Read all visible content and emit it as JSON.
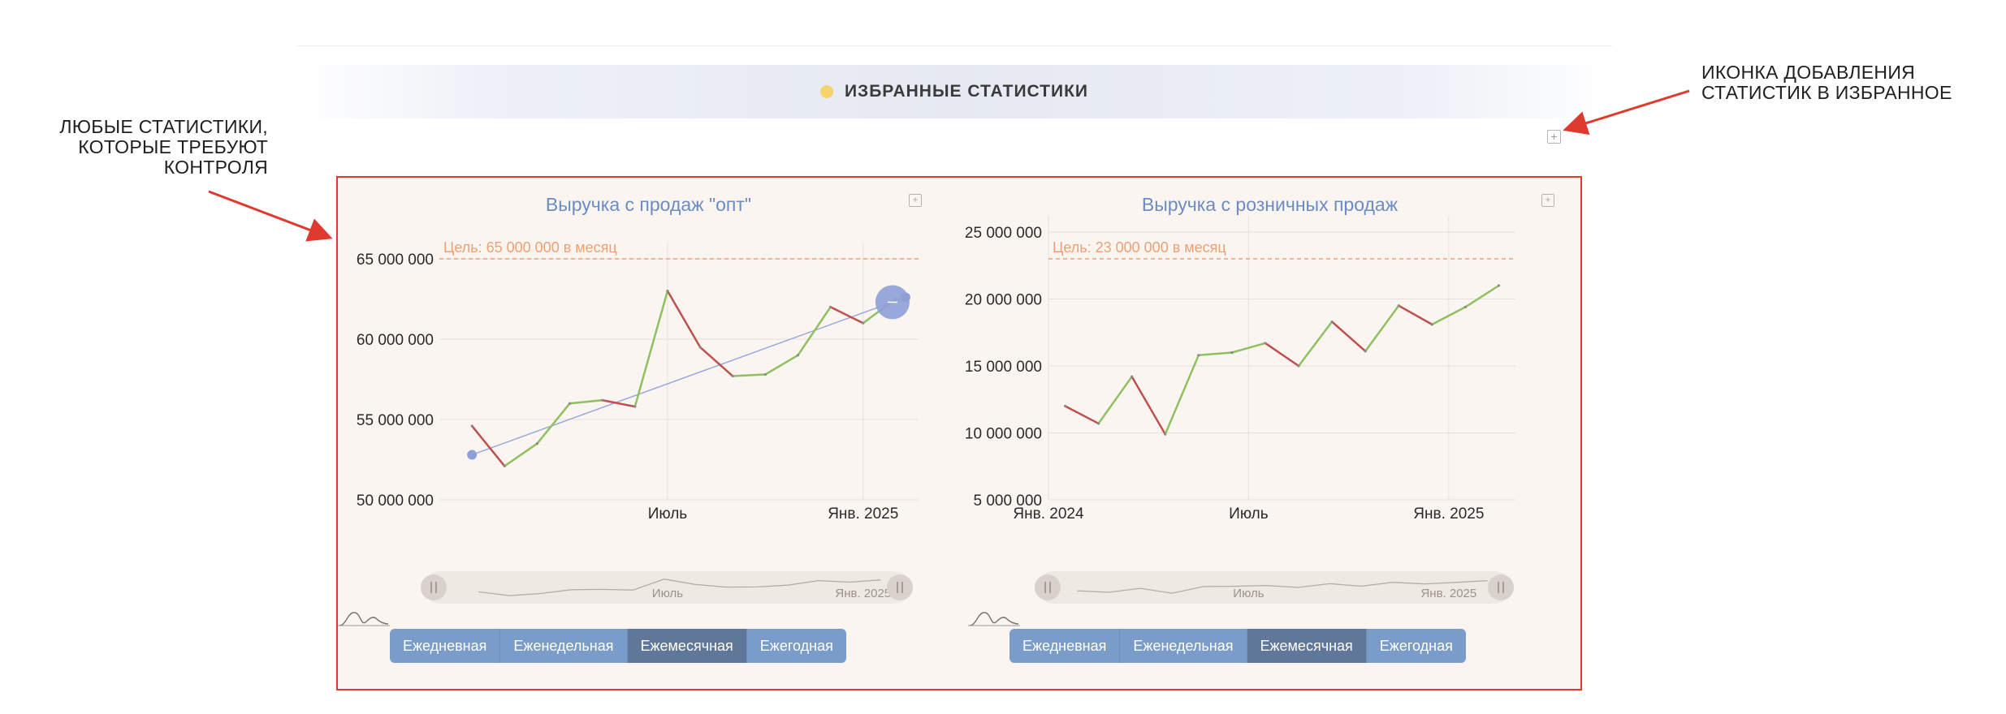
{
  "favorites": {
    "title": "ИЗБРАННЫЕ СТАТИСТИКИ",
    "dot_color": "#f6d36b"
  },
  "annotations": {
    "left_note": [
      "ЛЮБЫЕ СТАТИСТИКИ,",
      "КОТОРЫЕ ТРЕБУЮТ",
      "КОНТРОЛЯ"
    ],
    "right_note": [
      "ИКОНКА ДОБАВЛЕНИЯ",
      "СТАТИСТИК В ИЗБРАННОЕ"
    ],
    "arrow_color": "#e03a2e"
  },
  "period_buttons": [
    "Ежедневная",
    "Еженедельная",
    "Ежемесячная",
    "Ежегодная"
  ],
  "active_period": "Ежемесячная",
  "colors": {
    "up": "#8fc060",
    "down": "#c0504d",
    "goal": "#f0a070",
    "trend": "#9aa8e0",
    "title": "#6b8cc0"
  },
  "chart_data": [
    {
      "type": "line",
      "title": "Выручка с продаж \"опт\"",
      "goal": {
        "value": 65000000,
        "label": "Цель: 65 000 000 в месяц"
      },
      "y_ticks": [
        "65 000 000",
        "60 000 000",
        "55 000 000",
        "50 000 000"
      ],
      "y_tick_values": [
        65000000,
        60000000,
        55000000,
        50000000
      ],
      "ylim": [
        50000000,
        65000000
      ],
      "x_ticks": [
        "Июль",
        "Янв. 2025"
      ],
      "x_tick_months": [
        6,
        12
      ],
      "xlim": [
        -1,
        13.7
      ],
      "navigator_ticks": [
        "Июль",
        "Янв. 2025"
      ],
      "points": [
        {
          "m": 0,
          "v": 54600000
        },
        {
          "m": 1,
          "v": 52100000
        },
        {
          "m": 2,
          "v": 53500000
        },
        {
          "m": 3,
          "v": 56000000
        },
        {
          "m": 4,
          "v": 56200000
        },
        {
          "m": 5,
          "v": 55800000
        },
        {
          "m": 6,
          "v": 63000000
        },
        {
          "m": 7,
          "v": 59500000
        },
        {
          "m": 8,
          "v": 57700000
        },
        {
          "m": 9,
          "v": 57800000
        },
        {
          "m": 10,
          "v": 59000000
        },
        {
          "m": 11,
          "v": 62000000
        },
        {
          "m": 12,
          "v": 61000000
        },
        {
          "m": 13,
          "v": 62500000
        }
      ],
      "trend": {
        "from": {
          "m": 0,
          "v": 52800000
        },
        "to": {
          "m": 13.3,
          "v": 62600000
        }
      },
      "marker_icon": "minus-icon"
    },
    {
      "type": "line",
      "title": "Выручка с розничных продаж",
      "goal": {
        "value": 23000000,
        "label": "Цель: 23 000 000 в месяц"
      },
      "y_ticks": [
        "25 000 000",
        "20 000 000",
        "15 000 000",
        "10 000 000",
        "5 000 000"
      ],
      "y_tick_values": [
        25000000,
        20000000,
        15000000,
        10000000,
        5000000
      ],
      "ylim": [
        5000000,
        25000000
      ],
      "x_ticks": [
        "Янв. 2024",
        "Июль",
        "Янв. 2025"
      ],
      "x_tick_months": [
        0,
        6,
        12
      ],
      "xlim": [
        0,
        14
      ],
      "navigator_ticks": [
        "Июль",
        "Янв. 2025"
      ],
      "points": [
        {
          "m": 0.5,
          "v": 12000000
        },
        {
          "m": 1.5,
          "v": 10700000
        },
        {
          "m": 2.5,
          "v": 14200000
        },
        {
          "m": 3.5,
          "v": 9900000
        },
        {
          "m": 4.5,
          "v": 15800000
        },
        {
          "m": 5.5,
          "v": 16000000
        },
        {
          "m": 6.5,
          "v": 16700000
        },
        {
          "m": 7.5,
          "v": 15000000
        },
        {
          "m": 8.5,
          "v": 18300000
        },
        {
          "m": 9.5,
          "v": 16100000
        },
        {
          "m": 10.5,
          "v": 19500000
        },
        {
          "m": 11.5,
          "v": 18100000
        },
        {
          "m": 12.5,
          "v": 19400000
        },
        {
          "m": 13.5,
          "v": 21000000
        }
      ]
    }
  ]
}
